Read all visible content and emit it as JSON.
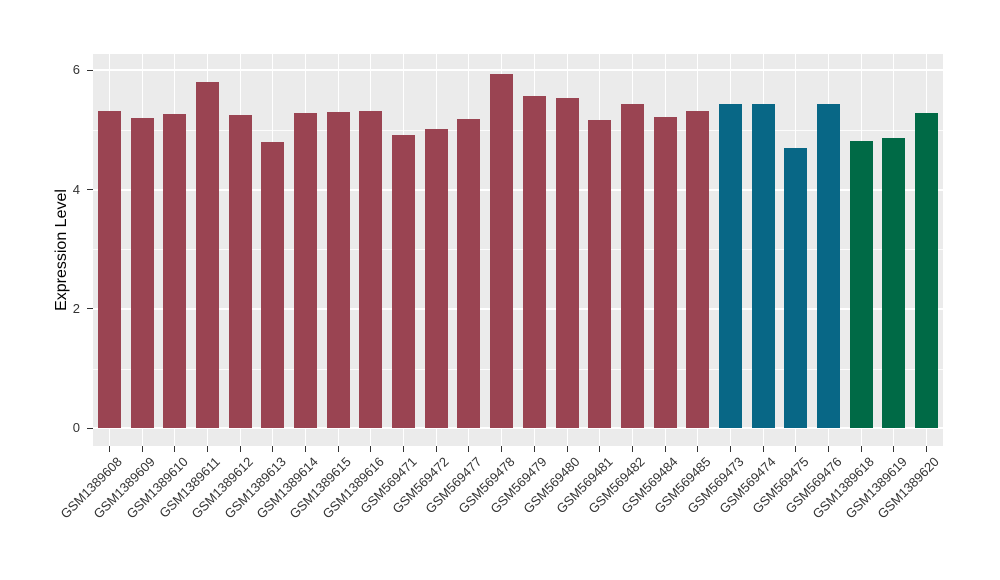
{
  "chart_data": {
    "type": "bar",
    "title": "",
    "xlabel": "",
    "ylabel": "Expression Level",
    "ylim": [
      0,
      6.2
    ],
    "yticks": [
      0,
      2,
      4,
      6
    ],
    "ytick_labels": [
      "0",
      "2",
      "4",
      "6"
    ],
    "yticks_minor": [
      1,
      3,
      5
    ],
    "grid": "on",
    "legend": "none",
    "panel_background": "#EBEBEB",
    "gridline_color": "#FFFFFF",
    "categories": [
      "GSM1389608",
      "GSM1389609",
      "GSM1389610",
      "GSM1389611",
      "GSM1389612",
      "GSM1389613",
      "GSM1389614",
      "GSM1389615",
      "GSM1389616",
      "GSM569471",
      "GSM569472",
      "GSM569477",
      "GSM569478",
      "GSM569479",
      "GSM569480",
      "GSM569481",
      "GSM569482",
      "GSM569484",
      "GSM569485",
      "GSM569473",
      "GSM569474",
      "GSM569475",
      "GSM569476",
      "GSM1389618",
      "GSM1389619",
      "GSM1389620"
    ],
    "values": [
      5.32,
      5.2,
      5.27,
      5.8,
      5.25,
      4.8,
      5.28,
      5.29,
      5.31,
      4.91,
      5.01,
      5.18,
      5.93,
      5.57,
      5.53,
      5.16,
      5.43,
      5.22,
      5.31,
      5.43,
      5.44,
      4.7,
      5.44,
      4.81,
      4.86,
      5.28
    ],
    "color_group_index": [
      0,
      0,
      0,
      0,
      0,
      0,
      0,
      0,
      0,
      0,
      0,
      0,
      0,
      0,
      0,
      0,
      0,
      0,
      0,
      1,
      1,
      1,
      1,
      2,
      2,
      2
    ],
    "palette": [
      "#9A4452",
      "#086786",
      "#006A46"
    ]
  }
}
